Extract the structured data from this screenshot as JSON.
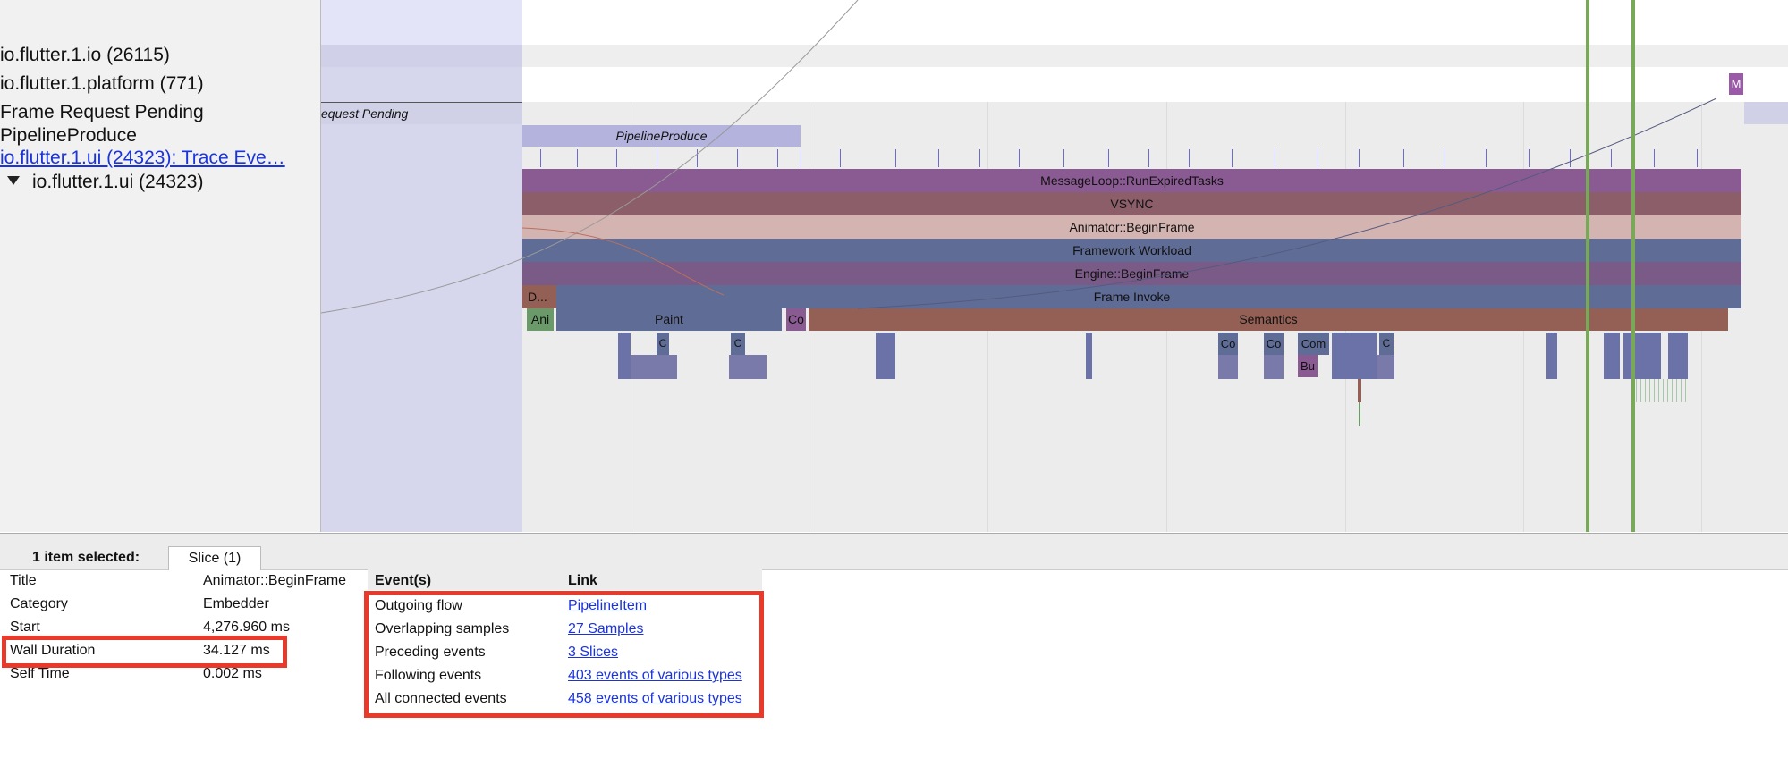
{
  "track_labels": {
    "io_thread": "io.flutter.1.io (26115)",
    "platform_thread": "io.flutter.1.platform (771)",
    "frame_request": "Frame Request Pending",
    "pipeline_produce": "PipelineProduce",
    "ui_trace_link": "io.flutter.1.ui (24323): Trace Eve…",
    "ui_thread": "io.flutter.1.ui (24323)"
  },
  "slices": {
    "request_pending": "equest Pending",
    "pipeline_produce": "PipelineProduce",
    "message_loop": "MessageLoop::RunExpiredTasks",
    "vsync": "VSYNC",
    "animator": "Animator::BeginFrame",
    "framework": "Framework Workload",
    "engine": "Engine::BeginFrame",
    "frame_invoke": "Frame Invoke",
    "d": "D...",
    "ani": "Ani",
    "paint": "Paint",
    "co_small": "Co",
    "semantics": "Semantics",
    "m": "M",
    "c1": "C",
    "c2": "C",
    "co1": "Co",
    "co2": "Co",
    "com": "Com",
    "c3": "C",
    "bu": "Bu"
  },
  "details": {
    "selected_count": "1 item selected:",
    "tab_label": "Slice (1)",
    "props": [
      {
        "key": "Title",
        "value": "Animator::BeginFrame"
      },
      {
        "key": "Category",
        "value": "Embedder"
      },
      {
        "key": "Start",
        "value": "4,276.960 ms"
      },
      {
        "key": "Wall Duration",
        "value": "34.127 ms"
      },
      {
        "key": "Self Time",
        "value": "0.002 ms"
      }
    ],
    "events_header": "Event(s)",
    "link_header": "Link",
    "events": [
      {
        "name": "Outgoing flow",
        "link": "PipelineItem"
      },
      {
        "name": "Overlapping samples",
        "link": "27 Samples"
      },
      {
        "name": "Preceding events",
        "link": "3 Slices"
      },
      {
        "name": "Following events",
        "link": "403 events of various types"
      },
      {
        "name": "All connected events",
        "link": "458 events of various types"
      }
    ]
  },
  "colors": {
    "highlight_red": "#e8392a",
    "message_loop": "#8a5a92",
    "vsync": "#8b5e6a",
    "animator": "#d4b4b0",
    "framework": "#5f6c96",
    "semantics": "#946055",
    "link_blue": "#1a33dd",
    "green_marker": "#79a858"
  }
}
